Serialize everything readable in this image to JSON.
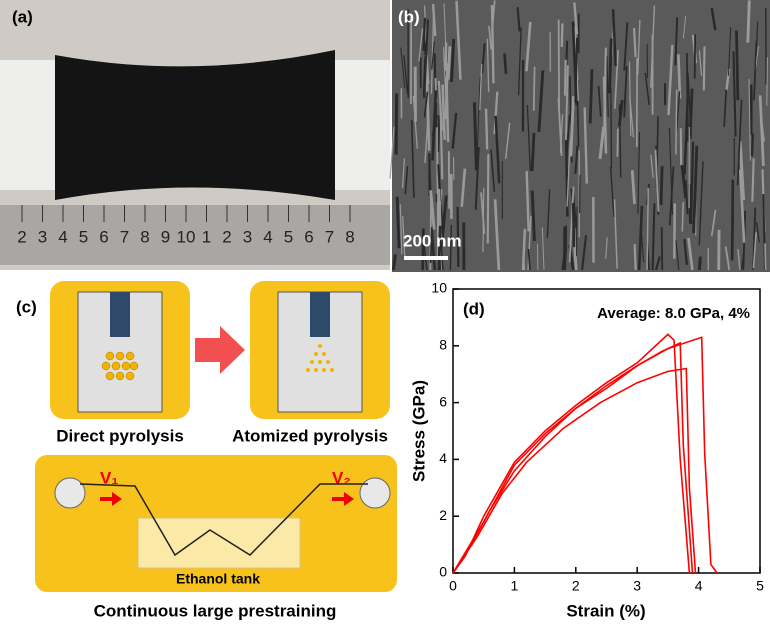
{
  "panels": {
    "a": {
      "label": "(a)",
      "ruler_labels": [
        "2",
        "3",
        "4",
        "5",
        "6",
        "7",
        "8",
        "9",
        "10",
        "1",
        "2",
        "3",
        "4",
        "5",
        "6",
        "7",
        "8"
      ]
    },
    "b": {
      "label": "(b)",
      "scale_bar": "200 nm"
    },
    "c": {
      "label": "(c)",
      "left_caption": "Direct pyrolysis",
      "right_caption": "Atomized pyrolysis",
      "v1": "V₁",
      "v2": "V₂",
      "tank": "Ethanol tank",
      "caption": "Continuous large prestraining"
    }
  },
  "chart_data": {
    "type": "line",
    "panel_label": "(d)",
    "annotation": "Average: 8.0 GPa, 4%",
    "x_label": "Strain (%)",
    "y_label": "Stress (GPa)",
    "xlim": [
      0,
      5
    ],
    "ylim": [
      0,
      10
    ],
    "xticks": [
      0,
      1,
      2,
      3,
      4,
      5
    ],
    "yticks": [
      0,
      2,
      4,
      6,
      8,
      10
    ],
    "series": [
      {
        "color": "#ff0000",
        "x": [
          0,
          0.2,
          0.5,
          1,
          1.5,
          2,
          2.5,
          3,
          3.5,
          3.6,
          3.7,
          3.85
        ],
        "values": [
          0,
          0.6,
          2,
          3.9,
          5,
          5.9,
          6.7,
          7.4,
          8.4,
          8.2,
          4,
          0
        ]
      },
      {
        "color": "#ff0000",
        "x": [
          0,
          0.3,
          0.6,
          1,
          1.5,
          2,
          2.5,
          3,
          3.5,
          4.05,
          4.1,
          4.2,
          4.3
        ],
        "values": [
          0,
          1,
          2.2,
          3.6,
          4.8,
          5.8,
          6.6,
          7.3,
          7.9,
          8.3,
          4.2,
          0.3,
          0
        ]
      },
      {
        "color": "#ff0000",
        "x": [
          0,
          0.4,
          0.8,
          1.2,
          1.8,
          2.4,
          3,
          3.5,
          3.8,
          3.85,
          3.95
        ],
        "values": [
          0,
          1.3,
          2.8,
          3.9,
          5.1,
          6,
          6.7,
          7.1,
          7.2,
          3,
          0
        ]
      },
      {
        "color": "#ff0000",
        "x": [
          0,
          0.5,
          1,
          1.5,
          2,
          2.5,
          3,
          3.4,
          3.7,
          3.75,
          3.9
        ],
        "values": [
          0,
          1.8,
          3.8,
          4.9,
          5.8,
          6.5,
          7.3,
          7.8,
          8.1,
          4.5,
          0
        ]
      }
    ]
  }
}
